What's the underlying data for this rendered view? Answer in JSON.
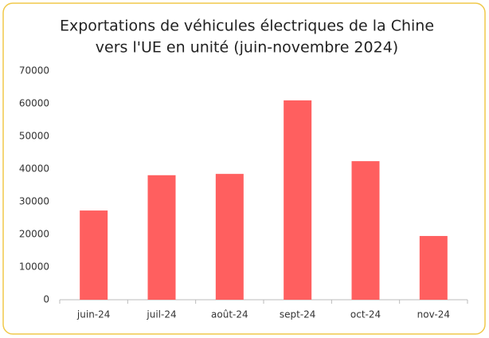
{
  "chart_data": {
    "type": "bar",
    "title": [
      "Exportations de véhicules électriques de la Chine",
      "vers l'UE en unité (juin-novembre 2024)"
    ],
    "categories": [
      "juin-24",
      "juil-24",
      "août-24",
      "sept-24",
      "oct-24",
      "nov-24"
    ],
    "values": [
      27300,
      38100,
      38500,
      61000,
      42400,
      19500
    ],
    "color": "#ff5f5f",
    "ylim": [
      0,
      70000
    ],
    "yticks": [
      0,
      10000,
      20000,
      30000,
      40000,
      50000,
      60000,
      70000
    ],
    "grid": false
  }
}
